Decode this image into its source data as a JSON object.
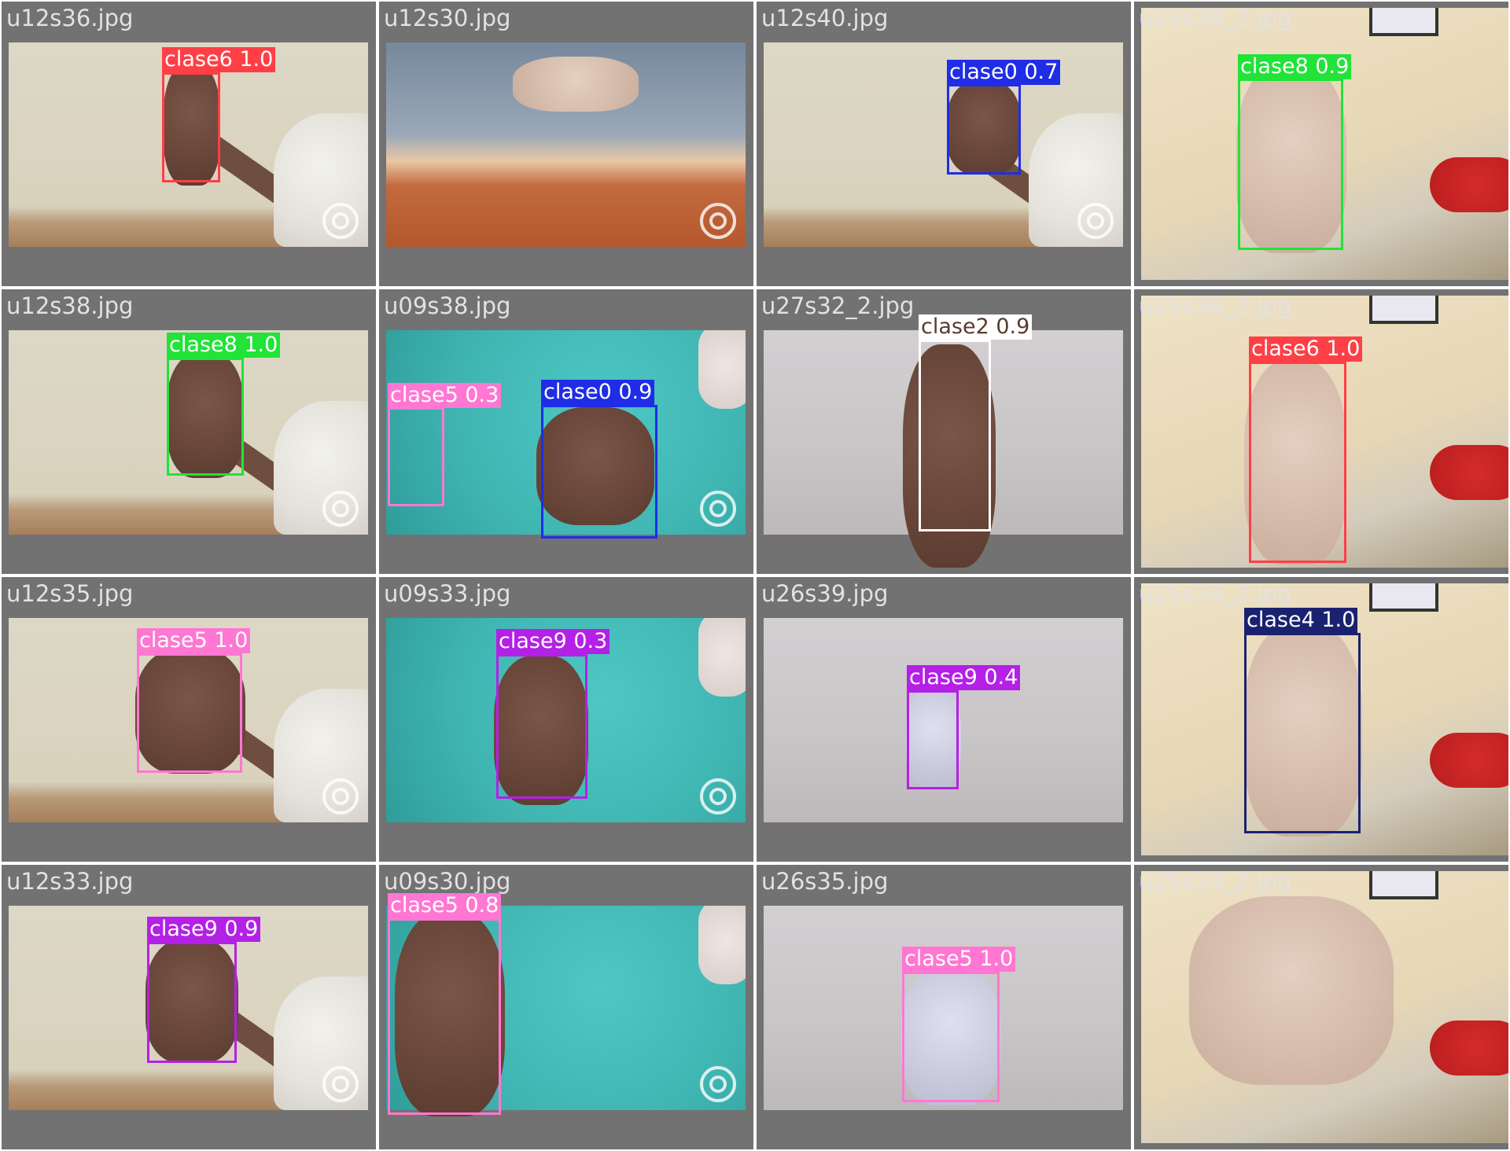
{
  "grid": {
    "rows": 4,
    "cols": 4,
    "cells": [
      {
        "title": "u12s36.jpg",
        "scene": "room",
        "detections": [
          {
            "label": "clase6 1.0",
            "color": "#ff3f46"
          }
        ]
      },
      {
        "title": "u12s30.jpg",
        "scene": "desk",
        "detections": []
      },
      {
        "title": "u12s40.jpg",
        "scene": "room",
        "detections": [
          {
            "label": "clase0 0.7",
            "color": "#1f2de6"
          }
        ]
      },
      {
        "title": "u25s38_2.jpg",
        "scene": "bed",
        "detections": [
          {
            "label": "clase8 0.9",
            "color": "#21e338"
          }
        ]
      },
      {
        "title": "u12s38.jpg",
        "scene": "room",
        "detections": [
          {
            "label": "clase8 1.0",
            "color": "#21e338"
          }
        ]
      },
      {
        "title": "u09s38.jpg",
        "scene": "teal",
        "detections": [
          {
            "label": "clase5 0.3",
            "color": "#ff77d2"
          },
          {
            "label": "clase0 0.9",
            "color": "#1f2de6"
          }
        ]
      },
      {
        "title": "u27s32_2.jpg",
        "scene": "wall",
        "detections": [
          {
            "label": "clase2 0.9",
            "color": "#ffffff",
            "textColor": "#5a3a2c"
          }
        ]
      },
      {
        "title": "u25s36_2.jpg",
        "scene": "bed",
        "detections": [
          {
            "label": "clase6 1.0",
            "color": "#ff3f46"
          }
        ]
      },
      {
        "title": "u12s35.jpg",
        "scene": "room",
        "detections": [
          {
            "label": "clase5 1.0",
            "color": "#ff77d2"
          }
        ]
      },
      {
        "title": "u09s33.jpg",
        "scene": "teal",
        "detections": [
          {
            "label": "clase9 0.3",
            "color": "#b420e6"
          }
        ]
      },
      {
        "title": "u26s39.jpg",
        "scene": "wall",
        "detections": [
          {
            "label": "clase9 0.4",
            "color": "#b420e6"
          }
        ]
      },
      {
        "title": "u25s34_2.jpg",
        "scene": "bed",
        "detections": [
          {
            "label": "clase4 1.0",
            "color": "#1a2270"
          }
        ]
      },
      {
        "title": "u12s33.jpg",
        "scene": "room",
        "detections": [
          {
            "label": "clase9 0.9",
            "color": "#b420e6"
          }
        ]
      },
      {
        "title": "u09s30.jpg",
        "scene": "teal",
        "detections": [
          {
            "label": "clase5 0.8",
            "color": "#ff77d2"
          }
        ]
      },
      {
        "title": "u26s35.jpg",
        "scene": "wall",
        "detections": [
          {
            "label": "clase5 1.0",
            "color": "#ff77d2"
          }
        ]
      },
      {
        "title": "u25s33_2.jpg",
        "scene": "bed",
        "detections": []
      }
    ]
  }
}
